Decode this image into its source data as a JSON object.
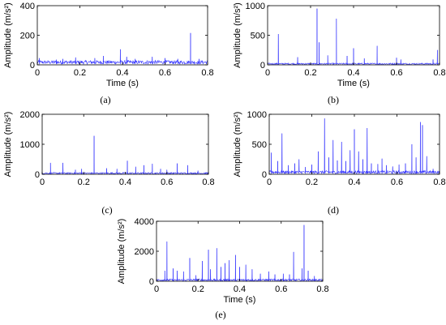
{
  "chart_data": [
    {
      "type": "line",
      "panel_label": "(a)",
      "title": "",
      "xlabel": "Time (s)",
      "ylabel": "Amplitude (m/s²)",
      "xlim": [
        0,
        0.8
      ],
      "ylim": [
        0,
        400
      ],
      "xticks": [
        "0",
        "0.2",
        "0.4",
        "0.6",
        "0.8"
      ],
      "yticks": [
        "0",
        "200",
        "400"
      ],
      "grid": false,
      "color": "#3333ff",
      "baseline": [
        5,
        30
      ],
      "peaks": [
        {
          "x": 0.01,
          "y": 45
        },
        {
          "x": 0.09,
          "y": 35
        },
        {
          "x": 0.12,
          "y": 40
        },
        {
          "x": 0.18,
          "y": 50
        },
        {
          "x": 0.27,
          "y": 45
        },
        {
          "x": 0.31,
          "y": 60
        },
        {
          "x": 0.39,
          "y": 105
        },
        {
          "x": 0.42,
          "y": 55
        },
        {
          "x": 0.46,
          "y": 40
        },
        {
          "x": 0.54,
          "y": 55
        },
        {
          "x": 0.6,
          "y": 45
        },
        {
          "x": 0.66,
          "y": 40
        },
        {
          "x": 0.72,
          "y": 215
        },
        {
          "x": 0.76,
          "y": 40
        }
      ]
    },
    {
      "type": "line",
      "panel_label": "(b)",
      "title": "",
      "xlabel": "Time (s)",
      "ylabel": "Amplitude (m/s²)",
      "xlim": [
        0,
        0.8
      ],
      "ylim": [
        0,
        1000
      ],
      "xticks": [
        "0",
        "0.2",
        "0.4",
        "0.6",
        "0.8"
      ],
      "yticks": [
        "0",
        "500",
        "1000"
      ],
      "grid": false,
      "color": "#3333ff",
      "baseline": [
        5,
        30
      ],
      "peaks": [
        {
          "x": 0.05,
          "y": 520
        },
        {
          "x": 0.14,
          "y": 130
        },
        {
          "x": 0.23,
          "y": 950
        },
        {
          "x": 0.24,
          "y": 380
        },
        {
          "x": 0.28,
          "y": 160
        },
        {
          "x": 0.32,
          "y": 780
        },
        {
          "x": 0.37,
          "y": 150
        },
        {
          "x": 0.4,
          "y": 280
        },
        {
          "x": 0.45,
          "y": 110
        },
        {
          "x": 0.51,
          "y": 320
        },
        {
          "x": 0.6,
          "y": 120
        },
        {
          "x": 0.62,
          "y": 90
        },
        {
          "x": 0.77,
          "y": 90
        },
        {
          "x": 0.79,
          "y": 250
        }
      ]
    },
    {
      "type": "line",
      "panel_label": "(c)",
      "title": "",
      "xlabel": "",
      "ylabel": "Amplitude (m/s²)",
      "xlim": [
        0,
        0.8
      ],
      "ylim": [
        0,
        2000
      ],
      "xticks": [
        "0",
        "0.2",
        "0.4",
        "0.6",
        "0.8"
      ],
      "yticks": [
        "0",
        "1000",
        "2000"
      ],
      "grid": false,
      "color": "#3333ff",
      "baseline": [
        10,
        60
      ],
      "peaks": [
        {
          "x": 0.04,
          "y": 380
        },
        {
          "x": 0.1,
          "y": 380
        },
        {
          "x": 0.16,
          "y": 150
        },
        {
          "x": 0.19,
          "y": 180
        },
        {
          "x": 0.25,
          "y": 1280
        },
        {
          "x": 0.31,
          "y": 200
        },
        {
          "x": 0.36,
          "y": 180
        },
        {
          "x": 0.41,
          "y": 450
        },
        {
          "x": 0.45,
          "y": 250
        },
        {
          "x": 0.49,
          "y": 300
        },
        {
          "x": 0.53,
          "y": 350
        },
        {
          "x": 0.57,
          "y": 180
        },
        {
          "x": 0.6,
          "y": 150
        },
        {
          "x": 0.65,
          "y": 360
        },
        {
          "x": 0.7,
          "y": 300
        },
        {
          "x": 0.75,
          "y": 120
        }
      ]
    },
    {
      "type": "line",
      "panel_label": "(d)",
      "title": "",
      "xlabel": "",
      "ylabel": "Amplitude (m/s²)",
      "xlim": [
        0,
        0.8
      ],
      "ylim": [
        0,
        1000
      ],
      "xticks": [
        "0",
        "0.2",
        "0.4",
        "0.6",
        "0.8"
      ],
      "yticks": [
        "0",
        "500",
        "1000"
      ],
      "grid": false,
      "color": "#3333ff",
      "baseline": [
        10,
        60
      ],
      "peaks": [
        {
          "x": 0.01,
          "y": 360
        },
        {
          "x": 0.04,
          "y": 220
        },
        {
          "x": 0.06,
          "y": 680
        },
        {
          "x": 0.09,
          "y": 150
        },
        {
          "x": 0.12,
          "y": 180
        },
        {
          "x": 0.14,
          "y": 250
        },
        {
          "x": 0.17,
          "y": 120
        },
        {
          "x": 0.2,
          "y": 160
        },
        {
          "x": 0.23,
          "y": 380
        },
        {
          "x": 0.26,
          "y": 930
        },
        {
          "x": 0.28,
          "y": 280
        },
        {
          "x": 0.3,
          "y": 570
        },
        {
          "x": 0.32,
          "y": 230
        },
        {
          "x": 0.34,
          "y": 540
        },
        {
          "x": 0.36,
          "y": 220
        },
        {
          "x": 0.38,
          "y": 400
        },
        {
          "x": 0.4,
          "y": 750
        },
        {
          "x": 0.42,
          "y": 380
        },
        {
          "x": 0.44,
          "y": 250
        },
        {
          "x": 0.46,
          "y": 770
        },
        {
          "x": 0.48,
          "y": 180
        },
        {
          "x": 0.51,
          "y": 170
        },
        {
          "x": 0.53,
          "y": 260
        },
        {
          "x": 0.55,
          "y": 150
        },
        {
          "x": 0.58,
          "y": 130
        },
        {
          "x": 0.61,
          "y": 160
        },
        {
          "x": 0.64,
          "y": 180
        },
        {
          "x": 0.67,
          "y": 500
        },
        {
          "x": 0.69,
          "y": 280
        },
        {
          "x": 0.71,
          "y": 870
        },
        {
          "x": 0.72,
          "y": 820
        },
        {
          "x": 0.74,
          "y": 300
        },
        {
          "x": 0.77,
          "y": 90
        }
      ]
    },
    {
      "type": "line",
      "panel_label": "(e)",
      "title": "",
      "xlabel": "Time (s)",
      "ylabel": "Amplitude (m/s²)",
      "xlim": [
        0,
        0.8
      ],
      "ylim": [
        0,
        4000
      ],
      "xticks": [
        "0",
        "0.2",
        "0.4",
        "0.6",
        "0.8"
      ],
      "yticks": [
        "0",
        "2000",
        "4000"
      ],
      "grid": false,
      "color": "#3333ff",
      "baseline": [
        20,
        150
      ],
      "peaks": [
        {
          "x": 0.04,
          "y": 700
        },
        {
          "x": 0.05,
          "y": 2650
        },
        {
          "x": 0.08,
          "y": 850
        },
        {
          "x": 0.1,
          "y": 700
        },
        {
          "x": 0.13,
          "y": 650
        },
        {
          "x": 0.16,
          "y": 1550
        },
        {
          "x": 0.19,
          "y": 400
        },
        {
          "x": 0.22,
          "y": 1350
        },
        {
          "x": 0.25,
          "y": 2100
        },
        {
          "x": 0.26,
          "y": 800
        },
        {
          "x": 0.29,
          "y": 2200
        },
        {
          "x": 0.31,
          "y": 950
        },
        {
          "x": 0.33,
          "y": 1200
        },
        {
          "x": 0.35,
          "y": 1400
        },
        {
          "x": 0.38,
          "y": 1750
        },
        {
          "x": 0.4,
          "y": 950
        },
        {
          "x": 0.43,
          "y": 1100
        },
        {
          "x": 0.46,
          "y": 800
        },
        {
          "x": 0.5,
          "y": 500
        },
        {
          "x": 0.54,
          "y": 650
        },
        {
          "x": 0.57,
          "y": 450
        },
        {
          "x": 0.61,
          "y": 500
        },
        {
          "x": 0.64,
          "y": 450
        },
        {
          "x": 0.66,
          "y": 1950
        },
        {
          "x": 0.7,
          "y": 850
        },
        {
          "x": 0.71,
          "y": 3750
        },
        {
          "x": 0.73,
          "y": 700
        },
        {
          "x": 0.76,
          "y": 350
        }
      ]
    }
  ]
}
